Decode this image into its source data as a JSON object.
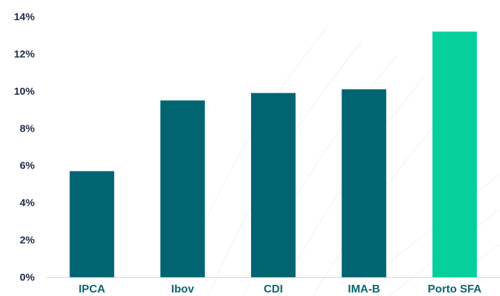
{
  "chart_data": {
    "type": "bar",
    "categories": [
      "IPCA",
      "Ibov",
      "CDI",
      "IMA-B",
      "Porto SFA"
    ],
    "values": [
      5.7,
      9.5,
      9.9,
      10.1,
      13.2
    ],
    "ylim": [
      0,
      14
    ],
    "yticks": [
      "0%",
      "2%",
      "4%",
      "6%",
      "8%",
      "10%",
      "12%",
      "14%"
    ],
    "ytick_values": [
      0,
      2,
      4,
      6,
      8,
      10,
      12,
      14
    ],
    "grid": false,
    "legend": "none",
    "colors": {
      "default_bar": "#006571",
      "highlight_bar": "#06cf9c",
      "highlight_category": "Porto SFA",
      "axis": "#cfd6dc"
    }
  }
}
